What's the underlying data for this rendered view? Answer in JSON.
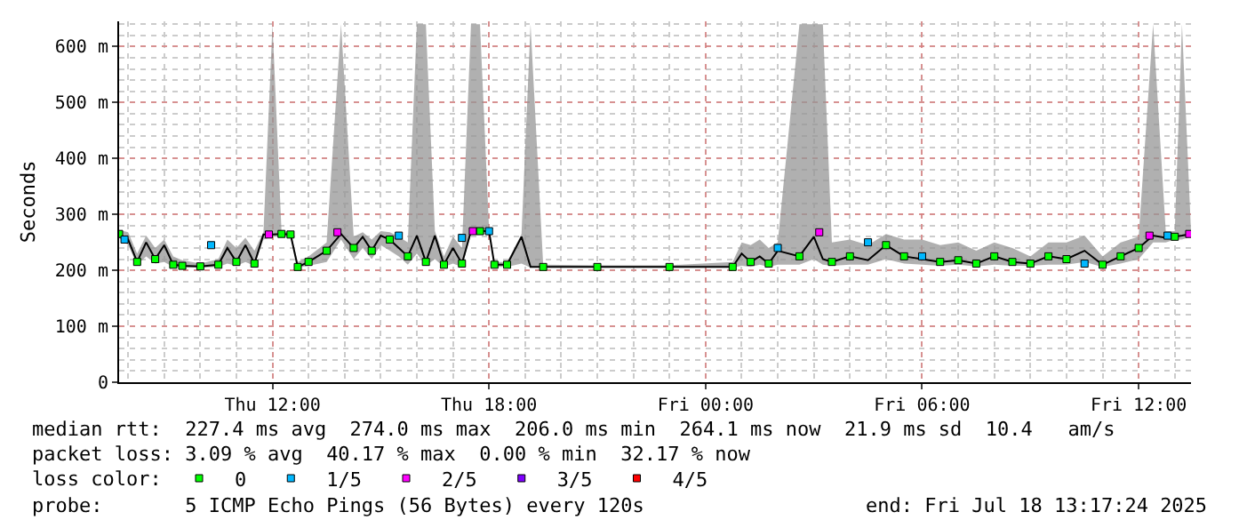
{
  "chart_data": {
    "type": "line",
    "ylabel": "Seconds",
    "legend_title": "loss color:",
    "legend": "bottom",
    "grid": true,
    "marker": "square",
    "line_style": "solid",
    "xlim": [
      "2025-07-17T07:45",
      "2025-07-18T13:27"
    ],
    "xticks": [
      {
        "value": "2025-07-17T12:00",
        "label": "Thu 12:00"
      },
      {
        "value": "2025-07-17T18:00",
        "label": "Thu 18:00"
      },
      {
        "value": "2025-07-18T00:00",
        "label": "Fri 00:00"
      },
      {
        "value": "2025-07-18T06:00",
        "label": "Fri 06:00"
      },
      {
        "value": "2025-07-18T12:00",
        "label": "Fri 12:00"
      }
    ],
    "ylim": [
      0,
      645
    ],
    "yticks": [
      0,
      {
        "value": 100,
        "label": "100 m"
      },
      {
        "value": 200,
        "label": "200 m"
      },
      {
        "value": 300,
        "label": "300 m"
      },
      {
        "value": 400,
        "label": "400 m"
      },
      {
        "value": 500,
        "label": "500 m"
      },
      {
        "value": 600,
        "label": "600 m"
      }
    ],
    "x": [
      "2025-07-17T07:45",
      "2025-07-17T08:00",
      "2025-07-17T08:15",
      "2025-07-17T08:30",
      "2025-07-17T08:45",
      "2025-07-17T09:00",
      "2025-07-17T09:15",
      "2025-07-17T09:30",
      "2025-07-17T10:00",
      "2025-07-17T10:30",
      "2025-07-17T10:45",
      "2025-07-17T11:00",
      "2025-07-17T11:15",
      "2025-07-17T11:30",
      "2025-07-17T11:45",
      "2025-07-17T12:00",
      "2025-07-17T12:15",
      "2025-07-17T12:30",
      "2025-07-17T12:42",
      "2025-07-17T13:00",
      "2025-07-17T13:30",
      "2025-07-17T13:54",
      "2025-07-17T14:15",
      "2025-07-17T14:30",
      "2025-07-17T14:45",
      "2025-07-17T15:00",
      "2025-07-17T15:15",
      "2025-07-17T15:30",
      "2025-07-17T15:45",
      "2025-07-17T16:00",
      "2025-07-17T16:15",
      "2025-07-17T16:30",
      "2025-07-17T16:45",
      "2025-07-17T17:00",
      "2025-07-17T17:15",
      "2025-07-17T17:30",
      "2025-07-17T17:45",
      "2025-07-17T18:00",
      "2025-07-17T18:09",
      "2025-07-17T18:30",
      "2025-07-17T18:54",
      "2025-07-17T19:09",
      "2025-07-17T19:30",
      "2025-07-17T21:00",
      "2025-07-17T23:00",
      "2025-07-18T00:45",
      "2025-07-18T01:00",
      "2025-07-18T01:15",
      "2025-07-18T01:30",
      "2025-07-18T01:45",
      "2025-07-18T02:00",
      "2025-07-18T02:36",
      "2025-07-18T03:00",
      "2025-07-18T03:15",
      "2025-07-18T03:30",
      "2025-07-18T04:00",
      "2025-07-18T04:30",
      "2025-07-18T05:00",
      "2025-07-18T05:30",
      "2025-07-18T06:00",
      "2025-07-18T06:30",
      "2025-07-18T07:00",
      "2025-07-18T07:30",
      "2025-07-18T08:00",
      "2025-07-18T08:30",
      "2025-07-18T09:00",
      "2025-07-18T09:30",
      "2025-07-18T10:00",
      "2025-07-18T10:30",
      "2025-07-18T11:00",
      "2025-07-18T11:30",
      "2025-07-18T12:00",
      "2025-07-18T12:24",
      "2025-07-18T12:45",
      "2025-07-18T13:00",
      "2025-07-18T13:12",
      "2025-07-18T13:27"
    ],
    "series": [
      {
        "color": "#000000",
        "marker": "none",
        "values": [
          265,
          255,
          215,
          250,
          220,
          245,
          210,
          208,
          207,
          210,
          240,
          215,
          245,
          212,
          264,
          264,
          265,
          264,
          206,
          215,
          235,
          265,
          240,
          260,
          235,
          262,
          255,
          240,
          225,
          262,
          215,
          262,
          210,
          240,
          212,
          270,
          270,
          270,
          210,
          210,
          260,
          206,
          206,
          206,
          206,
          206,
          230,
          215,
          225,
          212,
          235,
          225,
          260,
          220,
          215,
          225,
          218,
          245,
          225,
          220,
          215,
          218,
          212,
          225,
          215,
          212,
          225,
          220,
          235,
          210,
          225,
          240,
          262,
          258,
          260,
          262,
          265
        ],
        "lower": [
          258,
          245,
          210,
          225,
          212,
          215,
          206,
          205,
          205,
          206,
          212,
          208,
          215,
          208,
          255,
          260,
          260,
          260,
          205,
          208,
          215,
          255,
          220,
          240,
          220,
          245,
          235,
          225,
          210,
          230,
          208,
          220,
          206,
          212,
          206,
          265,
          265,
          265,
          206,
          206,
          212,
          205,
          205,
          205,
          205,
          205,
          208,
          206,
          210,
          206,
          210,
          210,
          220,
          210,
          208,
          210,
          210,
          220,
          212,
          210,
          208,
          210,
          207,
          210,
          208,
          208,
          210,
          210,
          215,
          206,
          212,
          220,
          250,
          250,
          255,
          255,
          260
        ],
        "upper": [
          272,
          268,
          230,
          262,
          240,
          255,
          225,
          218,
          212,
          220,
          255,
          240,
          258,
          235,
          268,
          640,
          270,
          268,
          215,
          225,
          250,
          640,
          260,
          268,
          255,
          270,
          268,
          260,
          250,
          640,
          640,
          270,
          225,
          260,
          240,
          640,
          640,
          274,
          215,
          215,
          265,
          640,
          210,
          209,
          209,
          215,
          250,
          245,
          255,
          240,
          250,
          640,
          640,
          640,
          250,
          255,
          245,
          265,
          255,
          255,
          245,
          250,
          235,
          250,
          240,
          225,
          250,
          250,
          262,
          225,
          250,
          260,
          640,
          270,
          270,
          640,
          270
        ]
      },
      {
        "type": "scatter",
        "name": "0",
        "color": "#00ff00",
        "x": [
          "2025-07-17T07:45",
          "2025-07-17T08:15",
          "2025-07-17T08:45",
          "2025-07-17T09:15",
          "2025-07-17T09:30",
          "2025-07-17T10:00",
          "2025-07-17T10:30",
          "2025-07-17T11:00",
          "2025-07-17T11:30",
          "2025-07-17T12:15",
          "2025-07-17T12:30",
          "2025-07-17T12:42",
          "2025-07-17T13:00",
          "2025-07-17T13:30",
          "2025-07-17T14:15",
          "2025-07-17T14:45",
          "2025-07-17T15:15",
          "2025-07-17T15:45",
          "2025-07-17T16:15",
          "2025-07-17T16:45",
          "2025-07-17T17:15",
          "2025-07-17T17:45",
          "2025-07-17T18:09",
          "2025-07-17T18:30",
          "2025-07-17T19:30",
          "2025-07-17T21:00",
          "2025-07-17T23:00",
          "2025-07-18T00:45",
          "2025-07-18T01:15",
          "2025-07-18T01:45",
          "2025-07-18T02:36",
          "2025-07-18T03:30",
          "2025-07-18T04:00",
          "2025-07-18T05:00",
          "2025-07-18T05:30",
          "2025-07-18T06:30",
          "2025-07-18T07:00",
          "2025-07-18T07:30",
          "2025-07-18T08:00",
          "2025-07-18T08:30",
          "2025-07-18T09:00",
          "2025-07-18T09:30",
          "2025-07-18T10:00",
          "2025-07-18T11:00",
          "2025-07-18T11:30",
          "2025-07-18T12:00",
          "2025-07-18T13:00"
        ],
        "values": [
          265,
          215,
          220,
          210,
          208,
          207,
          210,
          215,
          212,
          265,
          264,
          206,
          215,
          235,
          240,
          235,
          255,
          225,
          215,
          210,
          212,
          270,
          210,
          210,
          206,
          206,
          206,
          206,
          215,
          212,
          225,
          215,
          225,
          245,
          225,
          215,
          218,
          212,
          225,
          215,
          212,
          225,
          220,
          210,
          225,
          240,
          260
        ]
      },
      {
        "type": "scatter",
        "name": "1/5",
        "color": "#00b8ff",
        "x": [
          "2025-07-17T07:54",
          "2025-07-17T10:18",
          "2025-07-17T15:30",
          "2025-07-17T17:15",
          "2025-07-17T18:00",
          "2025-07-18T02:00",
          "2025-07-18T04:30",
          "2025-07-18T06:00",
          "2025-07-18T10:30",
          "2025-07-18T12:48"
        ],
        "values": [
          255,
          245,
          262,
          258,
          270,
          240,
          250,
          225,
          212,
          262
        ]
      },
      {
        "type": "scatter",
        "name": "2/5",
        "color": "#ff00ff",
        "x": [
          "2025-07-17T11:54",
          "2025-07-17T13:48",
          "2025-07-17T17:33",
          "2025-07-18T03:09",
          "2025-07-18T12:18",
          "2025-07-18T13:24"
        ],
        "values": [
          264,
          268,
          270,
          268,
          262,
          265
        ]
      },
      {
        "type": "scatter",
        "name": "3/5",
        "color": "#7e00ff",
        "values": [
          null,
          null,
          null,
          null,
          null,
          null,
          null,
          null,
          null,
          null,
          null,
          null,
          null,
          null,
          null,
          null,
          null,
          null,
          null,
          null,
          null,
          null,
          null,
          null,
          null,
          null,
          null,
          null,
          null,
          null,
          null,
          null,
          null,
          null,
          null,
          null,
          null,
          null,
          null,
          null,
          null,
          null,
          null,
          null,
          null,
          null,
          null,
          null,
          null,
          null,
          null,
          null,
          null,
          null,
          null,
          null,
          null,
          null,
          null,
          null,
          null,
          null,
          null,
          null,
          null,
          null,
          null,
          null,
          null,
          null,
          null,
          null,
          null,
          null,
          null,
          null,
          null
        ]
      },
      {
        "type": "scatter",
        "name": "4/5",
        "color": "#ff0000",
        "values": [
          null,
          null,
          null,
          null,
          null,
          null,
          null,
          null,
          null,
          null,
          null,
          null,
          null,
          null,
          null,
          null,
          null,
          null,
          null,
          null,
          null,
          null,
          null,
          null,
          null,
          null,
          null,
          null,
          null,
          null,
          null,
          null,
          null,
          null,
          null,
          null,
          null,
          null,
          null,
          null,
          null,
          null,
          null,
          null,
          null,
          null,
          null,
          null,
          null,
          null,
          null,
          null,
          null,
          null,
          null,
          null,
          null,
          null,
          null,
          null,
          null,
          null,
          null,
          null,
          null,
          null,
          null,
          null,
          null,
          null,
          null,
          null,
          null,
          null,
          null,
          null,
          null
        ]
      }
    ],
    "annotations": [
      "median rtt:  227.4 ms avg  274.0 ms max  206.0 ms min  264.1 ms now  21.9 ms sd  10.4   am/s",
      "packet loss: 3.09 % avg  40.17 % max  0.00 % min  32.17 % now",
      "probe:       5 ICMP Echo Pings (56 Bytes) every 120s",
      "end: Fri Jul 18 13:17:24 2025"
    ]
  }
}
